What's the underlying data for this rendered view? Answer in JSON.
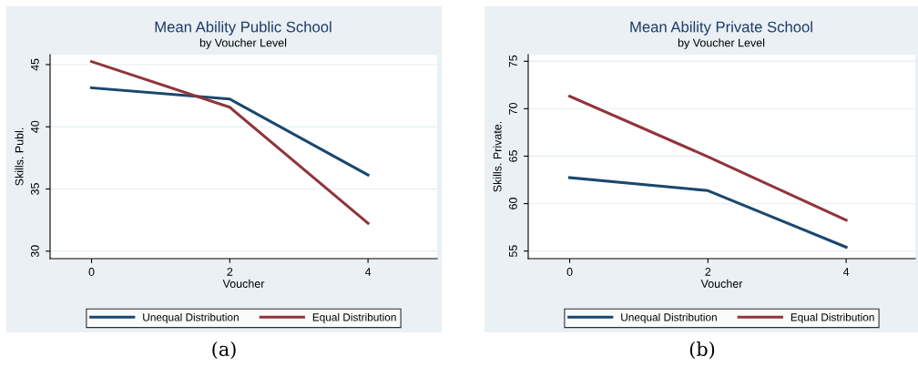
{
  "chart_data": [
    {
      "type": "line",
      "title": "Mean Ability Public School",
      "subtitle": "by Voucher Level",
      "xlabel": "Voucher",
      "ylabel": "Skills. Publ.",
      "x": [
        0,
        2,
        4
      ],
      "series": [
        {
          "name": "Unequal Distribution",
          "color": "#1a476f",
          "values": [
            43.13,
            42.23,
            36.12
          ]
        },
        {
          "name": "Equal Distribution",
          "color": "#90353b",
          "values": [
            45.24,
            41.57,
            32.25
          ]
        }
      ],
      "xlim": [
        -0.6,
        5
      ],
      "xticks": [
        0,
        2,
        4
      ],
      "ylim": [
        29.4,
        45.8
      ],
      "yticks": [
        30,
        35,
        40,
        45
      ],
      "grid": "y",
      "legend": "bottom",
      "marker": "none",
      "line_style": "solid",
      "annotations": [
        "(a)"
      ]
    },
    {
      "type": "line",
      "title": "Mean Ability Private School",
      "subtitle": "by Voucher Level",
      "xlabel": "Voucher",
      "ylabel": "Skills. Private.",
      "x": [
        0,
        2,
        4
      ],
      "series": [
        {
          "name": "Unequal Distribution",
          "color": "#1a476f",
          "values": [
            62.74,
            61.37,
            55.41
          ]
        },
        {
          "name": "Equal Distribution",
          "color": "#90353b",
          "values": [
            71.31,
            64.94,
            58.25
          ]
        }
      ],
      "xlim": [
        -0.6,
        5
      ],
      "xticks": [
        0,
        2,
        4
      ],
      "ylim": [
        54.2,
        75.7
      ],
      "yticks": [
        55,
        60,
        65,
        70,
        75
      ],
      "grid": "y",
      "legend": "bottom",
      "marker": "none",
      "line_style": "solid",
      "annotations": [
        "(b)"
      ]
    }
  ]
}
